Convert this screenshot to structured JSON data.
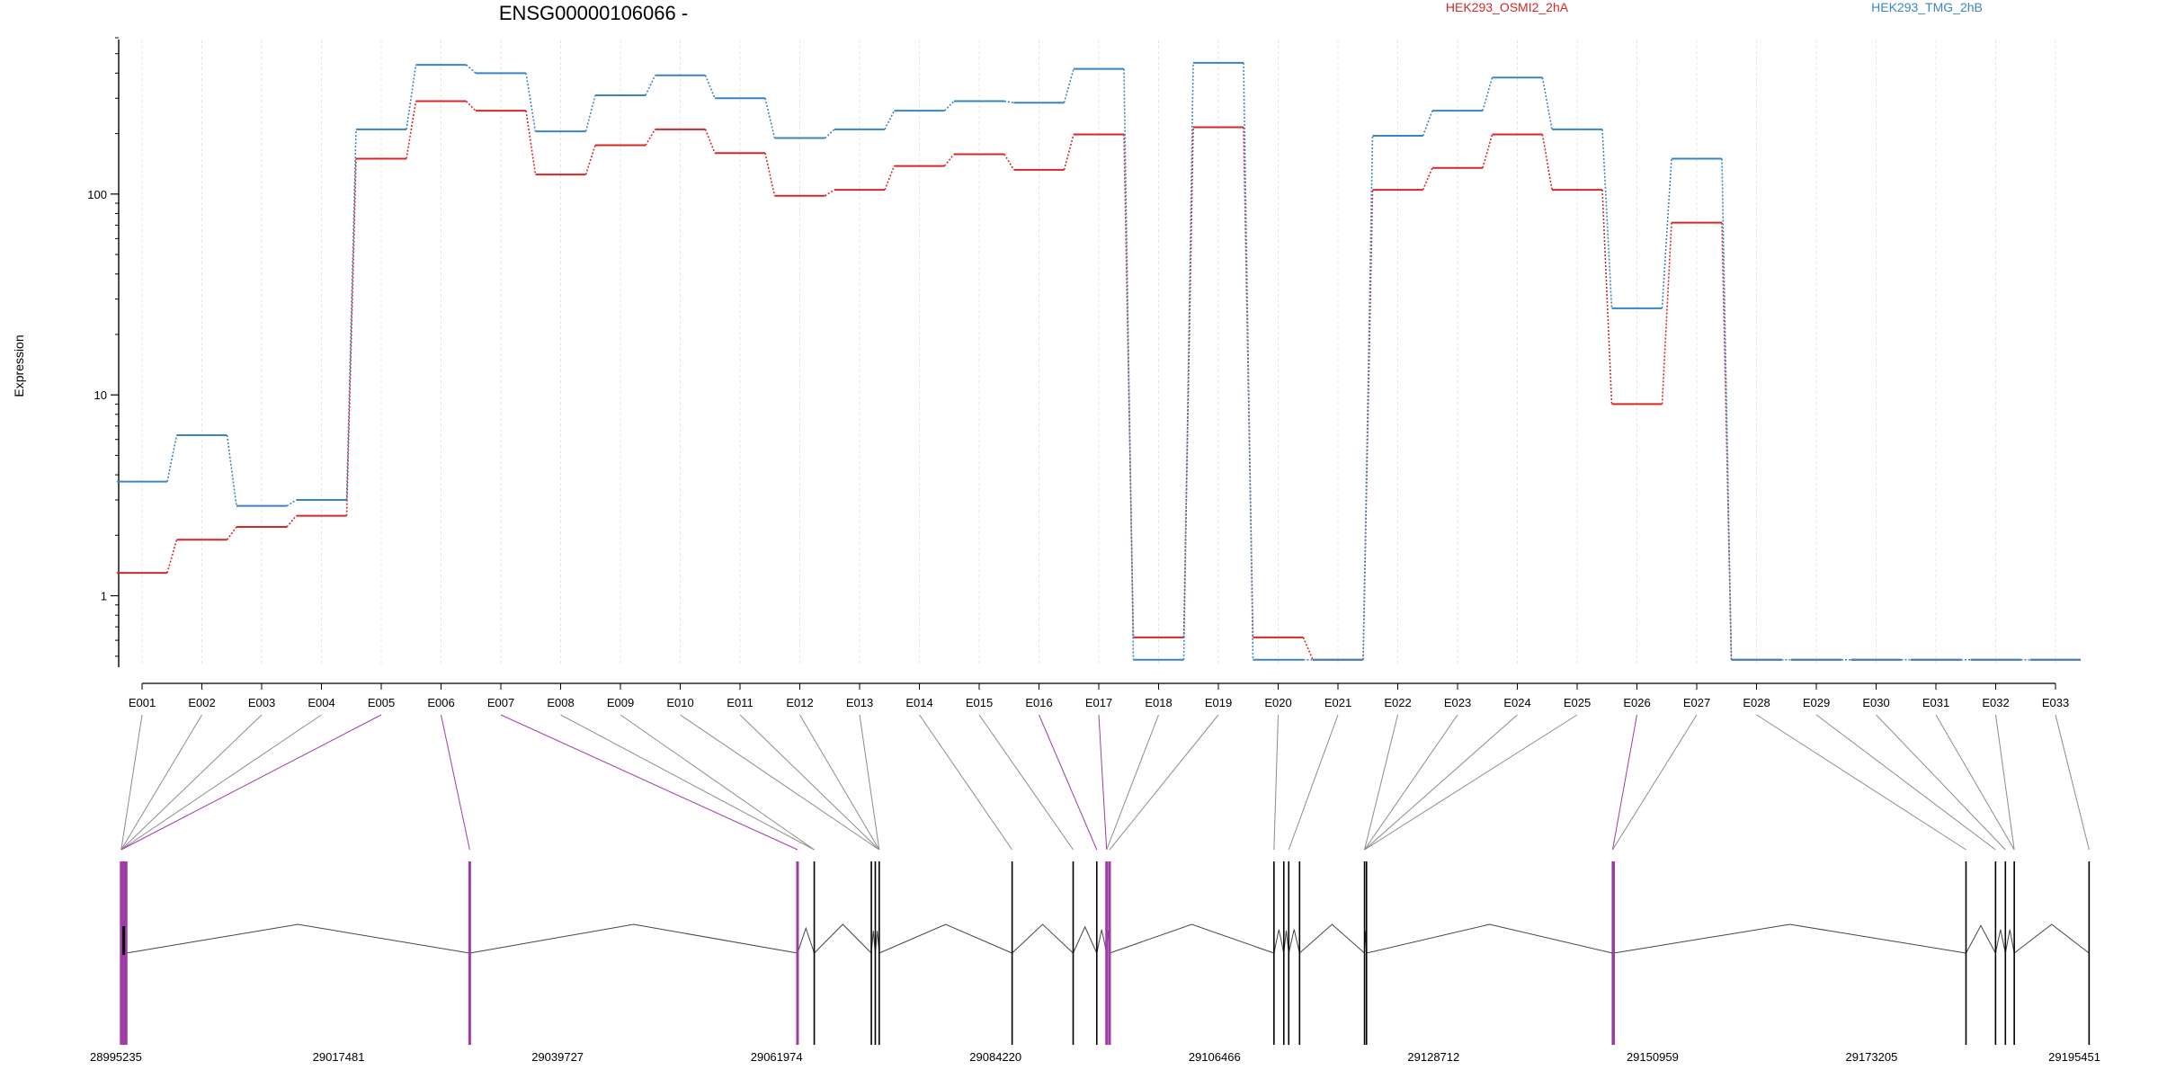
{
  "chart_data": {
    "type": "line",
    "title": "ENSG00000106066 -",
    "ylabel": "Expression",
    "xlabel": "",
    "y_scale": "log",
    "ylim": [
      0.45,
      600
    ],
    "y_ticks": [
      {
        "value": 1,
        "label": "1"
      },
      {
        "value": 10,
        "label": "10"
      },
      {
        "value": 100,
        "label": "100"
      }
    ],
    "grid": "vertical",
    "legend": "top",
    "categories": [
      "E001",
      "E002",
      "E003",
      "E004",
      "E005",
      "E006",
      "E007",
      "E008",
      "E009",
      "E010",
      "E011",
      "E012",
      "E013",
      "E014",
      "E015",
      "E016",
      "E017",
      "E018",
      "E019",
      "E020",
      "E021",
      "E022",
      "E023",
      "E024",
      "E025",
      "E026",
      "E027",
      "E028",
      "E029",
      "E030",
      "E031",
      "E032",
      "E033"
    ],
    "series": [
      {
        "name": "HEK293_OSMI2_2hA",
        "color": "#d62728",
        "values": [
          1.3,
          1.9,
          2.2,
          2.5,
          150,
          290,
          260,
          125,
          175,
          210,
          160,
          98,
          105,
          138,
          158,
          132,
          198,
          0.62,
          215,
          0.62,
          0.48,
          105,
          135,
          198,
          105,
          9,
          72,
          0.48,
          0.48,
          0.48,
          0.48,
          0.48,
          0.48
        ]
      },
      {
        "name": "HEK293_TMG_2hB",
        "color": "#3a84c4",
        "values": [
          3.7,
          6.3,
          2.8,
          3.0,
          210,
          440,
          400,
          205,
          310,
          390,
          300,
          190,
          210,
          260,
          290,
          285,
          420,
          0.48,
          450,
          0.48,
          0.48,
          195,
          260,
          380,
          210,
          27,
          150,
          0.48,
          0.48,
          0.48,
          0.48,
          0.48,
          0.48
        ]
      }
    ],
    "gene_model": {
      "coordinate_ticks": [
        "28995235",
        "29017481",
        "29039727",
        "29061974",
        "29084220",
        "29106466",
        "29128712",
        "29150959",
        "29173205",
        "29195451"
      ],
      "exon_positions": [
        28995400,
        28995650,
        28995900,
        29030800,
        29064100,
        29065800,
        29071600,
        29072000,
        29072400,
        29085900,
        29092100,
        29094500,
        29095500,
        29095800,
        29112500,
        29113500,
        29114000,
        29115100,
        29121700,
        29121900,
        29146900,
        29147000,
        29182800,
        29185800,
        29186800,
        29187700,
        29195300
      ],
      "highlighted_exons": [
        28995400,
        28995650,
        28995900,
        29030800,
        29064100,
        29095500,
        29095800,
        29147000
      ],
      "exon_color": "#000000",
      "highlight_color": "#a03ca8",
      "feature_map": [
        0,
        0,
        0,
        0,
        0,
        3,
        4,
        5,
        5,
        8,
        8,
        8,
        8,
        9,
        10,
        11,
        12,
        12,
        13,
        14,
        16,
        18,
        18,
        18,
        18,
        20,
        20,
        22,
        23,
        24,
        25,
        25,
        26
      ],
      "highlighted_features": [
        "E005",
        "E006",
        "E007",
        "E016",
        "E017",
        "E026"
      ]
    }
  },
  "legend": {
    "series_a": "HEK293_OSMI2_2hA",
    "series_b": "HEK293_TMG_2hB"
  }
}
